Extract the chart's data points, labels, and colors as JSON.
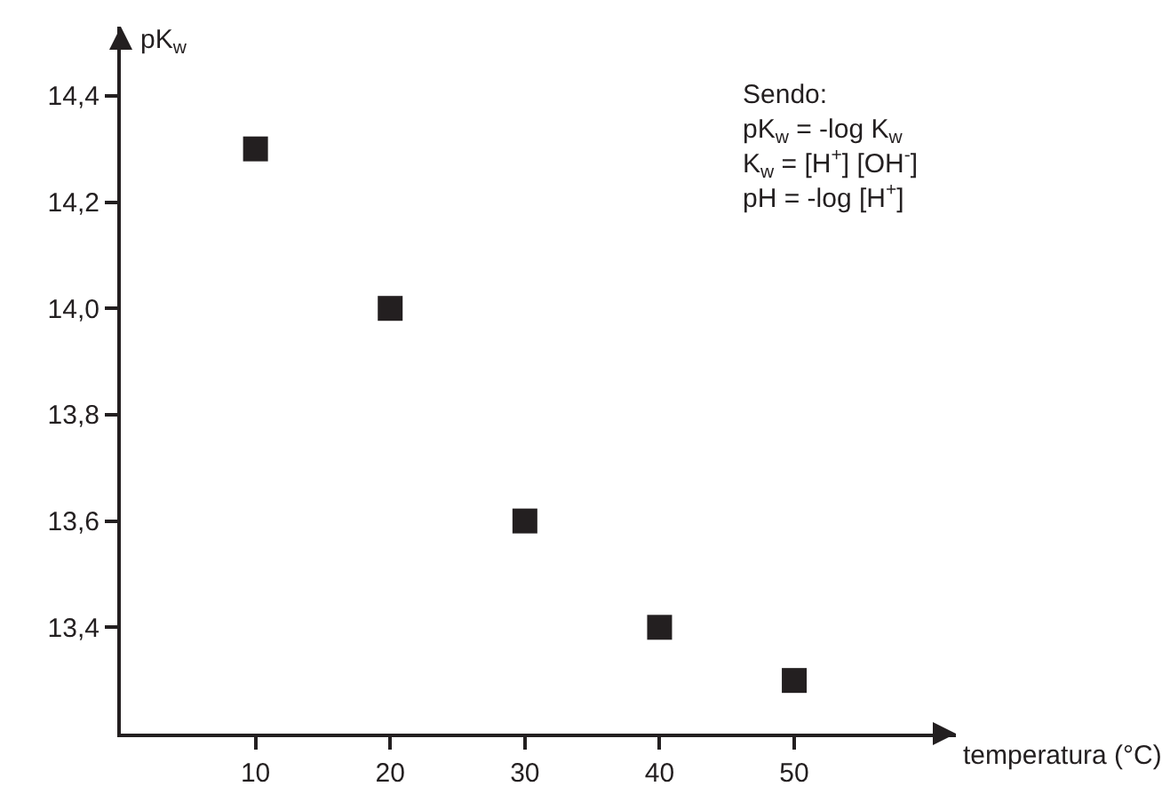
{
  "chart_data": {
    "type": "scatter",
    "xlabel": "temperatura (°C)",
    "ylabel": "pK$_{w}$",
    "x": [
      10,
      20,
      30,
      40,
      50
    ],
    "series": [
      {
        "color": "#231f20",
        "values": [
          14.3,
          14.0,
          13.6,
          13.4,
          13.3
        ]
      }
    ],
    "marker": "square",
    "xlim": [
      0,
      62
    ],
    "xticks": [
      10,
      20,
      30,
      40,
      50
    ],
    "ylim": [
      13.2,
      14.53
    ],
    "yticks": [
      {
        "value": 13.4,
        "label": "13,4"
      },
      {
        "value": 13.6,
        "label": "13,6"
      },
      {
        "value": 13.8,
        "label": "13,8"
      },
      {
        "value": 14.0,
        "label": "14,0"
      },
      {
        "value": 14.2,
        "label": "14,2"
      },
      {
        "value": 14.4,
        "label": "14,4"
      }
    ],
    "annotations": [
      "Sendo:",
      "pK$_{w}$ = -log K$_{w}$",
      "K$_{w}$ = [H$^{+}$] [OH$^{-}$]",
      "pH = -log [H$^{+}$]"
    ]
  }
}
